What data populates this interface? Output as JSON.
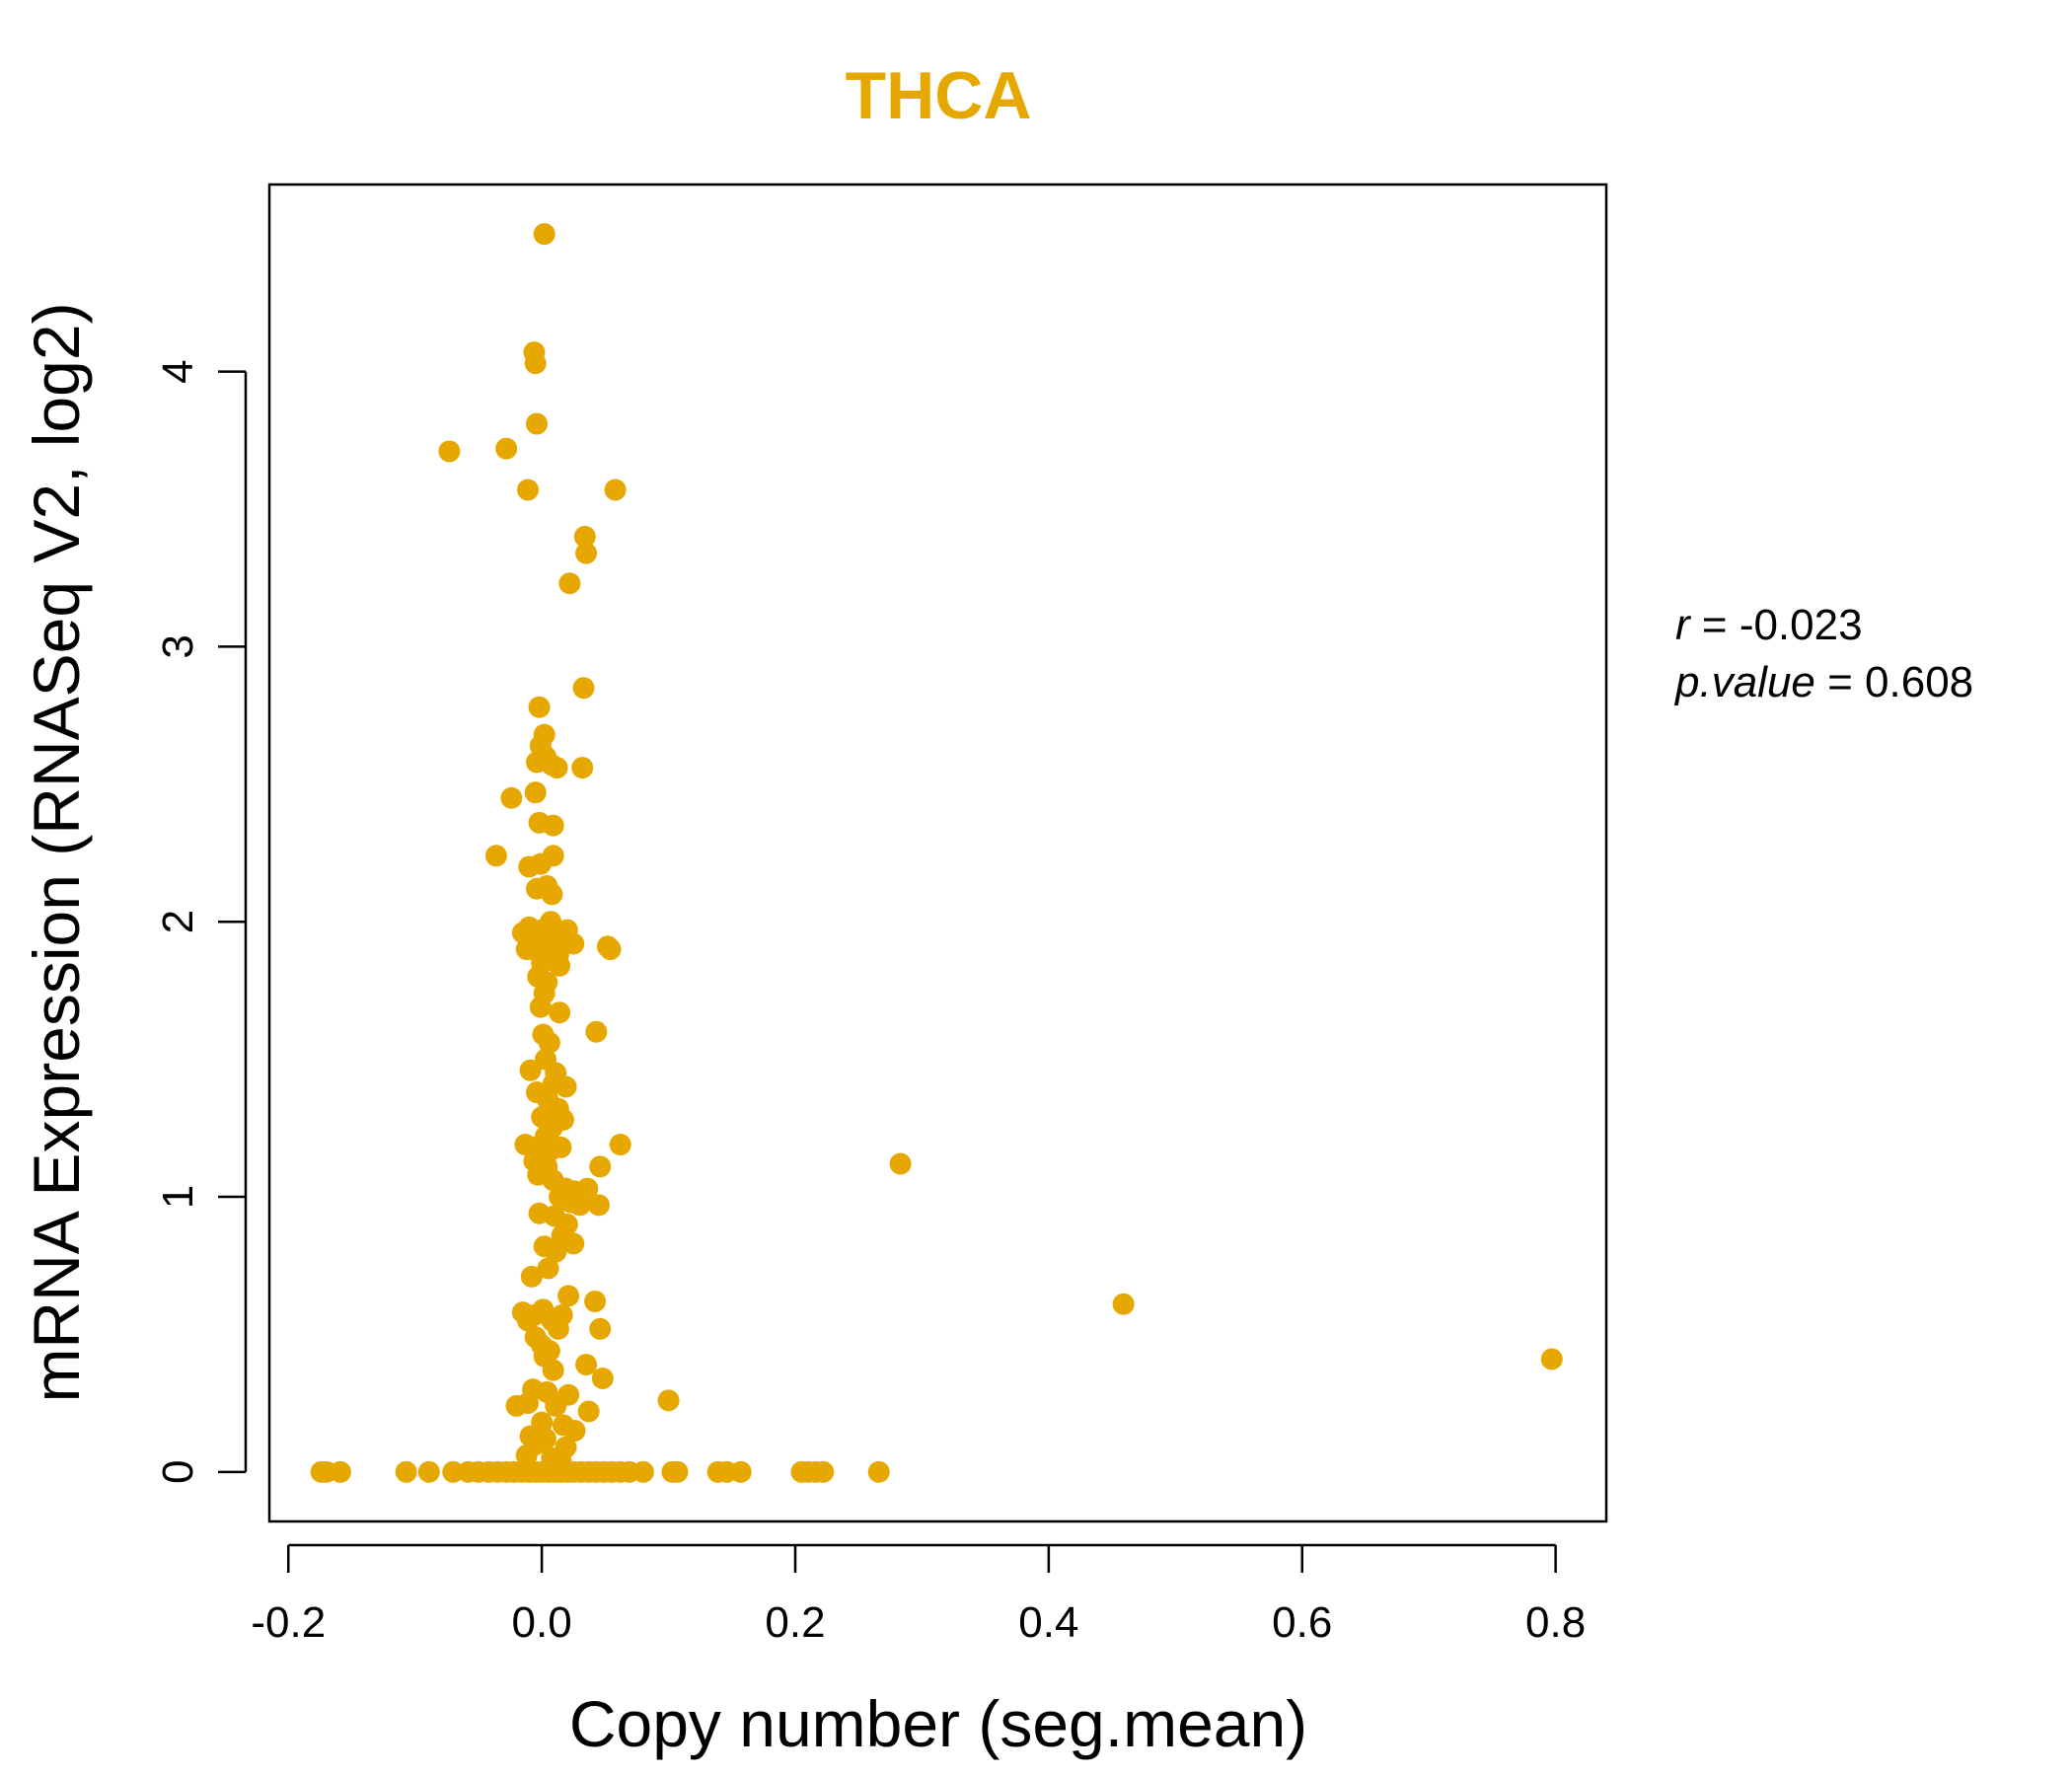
{
  "chart_data": {
    "type": "scatter",
    "title": "THCA",
    "xlabel": "Copy number (seg.mean)",
    "ylabel": "mRNA Expression (RNASeq V2, log2)",
    "xlim": [
      -0.215,
      0.84
    ],
    "ylim": [
      -0.18,
      4.68
    ],
    "xticks": [
      -0.2,
      0.0,
      0.2,
      0.4,
      0.6,
      0.8
    ],
    "xtick_labels": [
      "-0.2",
      "0.0",
      "0.2",
      "0.4",
      "0.6",
      "0.8"
    ],
    "yticks": [
      0,
      1,
      2,
      3,
      4
    ],
    "ytick_labels": [
      "0",
      "1",
      "2",
      "3",
      "4"
    ],
    "grid": false,
    "legend": "none",
    "colors": {
      "points": "#E6A800",
      "title": "#E6A800",
      "axes": "#000000"
    },
    "stats": {
      "r_label": "r",
      "r_value": "-0.023",
      "p_label": "p.value",
      "p_value": "0.608"
    },
    "points": [
      {
        "x": 0.002,
        "y": 4.5
      },
      {
        "x": -0.006,
        "y": 4.07
      },
      {
        "x": -0.005,
        "y": 4.03
      },
      {
        "x": -0.004,
        "y": 3.81
      },
      {
        "x": -0.073,
        "y": 3.71
      },
      {
        "x": -0.028,
        "y": 3.72
      },
      {
        "x": -0.011,
        "y": 3.57
      },
      {
        "x": 0.058,
        "y": 3.57
      },
      {
        "x": 0.034,
        "y": 3.4
      },
      {
        "x": 0.035,
        "y": 3.34
      },
      {
        "x": 0.022,
        "y": 3.23
      },
      {
        "x": 0.033,
        "y": 2.85
      },
      {
        "x": -0.002,
        "y": 2.78
      },
      {
        "x": 0.002,
        "y": 2.68
      },
      {
        "x": -0.001,
        "y": 2.64
      },
      {
        "x": 0.003,
        "y": 2.6
      },
      {
        "x": -0.004,
        "y": 2.58
      },
      {
        "x": 0.008,
        "y": 2.57
      },
      {
        "x": 0.012,
        "y": 2.56
      },
      {
        "x": 0.032,
        "y": 2.56
      },
      {
        "x": -0.024,
        "y": 2.45
      },
      {
        "x": -0.005,
        "y": 2.47
      },
      {
        "x": -0.002,
        "y": 2.36
      },
      {
        "x": 0.009,
        "y": 2.35
      },
      {
        "x": -0.036,
        "y": 2.24
      },
      {
        "x": 0.009,
        "y": 2.24
      },
      {
        "x": -0.01,
        "y": 2.2
      },
      {
        "x": -0.001,
        "y": 2.21
      },
      {
        "x": -0.004,
        "y": 2.12
      },
      {
        "x": 0.004,
        "y": 2.13
      },
      {
        "x": 0.008,
        "y": 2.1
      },
      {
        "x": 0.007,
        "y": 2.0
      },
      {
        "x": -0.015,
        "y": 1.96
      },
      {
        "x": -0.01,
        "y": 1.98
      },
      {
        "x": -0.005,
        "y": 1.95
      },
      {
        "x": 0.0,
        "y": 1.97
      },
      {
        "x": 0.004,
        "y": 1.94
      },
      {
        "x": 0.01,
        "y": 1.96
      },
      {
        "x": 0.015,
        "y": 1.95
      },
      {
        "x": 0.02,
        "y": 1.97
      },
      {
        "x": 0.025,
        "y": 1.92
      },
      {
        "x": -0.012,
        "y": 1.9
      },
      {
        "x": -0.003,
        "y": 1.89
      },
      {
        "x": 0.006,
        "y": 1.9
      },
      {
        "x": 0.013,
        "y": 1.88
      },
      {
        "x": 0.052,
        "y": 1.91
      },
      {
        "x": 0.054,
        "y": 1.9
      },
      {
        "x": 0.0,
        "y": 1.85
      },
      {
        "x": 0.014,
        "y": 1.84
      },
      {
        "x": -0.003,
        "y": 1.8
      },
      {
        "x": 0.004,
        "y": 1.78
      },
      {
        "x": 0.002,
        "y": 1.74
      },
      {
        "x": -0.001,
        "y": 1.69
      },
      {
        "x": 0.014,
        "y": 1.67
      },
      {
        "x": 0.043,
        "y": 1.6
      },
      {
        "x": 0.001,
        "y": 1.59
      },
      {
        "x": 0.006,
        "y": 1.56
      },
      {
        "x": 0.003,
        "y": 1.5
      },
      {
        "x": -0.009,
        "y": 1.46
      },
      {
        "x": 0.011,
        "y": 1.45
      },
      {
        "x": 0.009,
        "y": 1.41
      },
      {
        "x": 0.019,
        "y": 1.4
      },
      {
        "x": -0.004,
        "y": 1.38
      },
      {
        "x": 0.005,
        "y": 1.35
      },
      {
        "x": 0.013,
        "y": 1.32
      },
      {
        "x": 0.0,
        "y": 1.29
      },
      {
        "x": 0.017,
        "y": 1.28
      },
      {
        "x": 0.008,
        "y": 1.25
      },
      {
        "x": 0.003,
        "y": 1.22
      },
      {
        "x": -0.013,
        "y": 1.19
      },
      {
        "x": -0.005,
        "y": 1.18
      },
      {
        "x": 0.007,
        "y": 1.17
      },
      {
        "x": 0.015,
        "y": 1.18
      },
      {
        "x": 0.062,
        "y": 1.19
      },
      {
        "x": -0.006,
        "y": 1.13
      },
      {
        "x": 0.004,
        "y": 1.11
      },
      {
        "x": 0.046,
        "y": 1.11
      },
      {
        "x": 0.283,
        "y": 1.12
      },
      {
        "x": -0.003,
        "y": 1.08
      },
      {
        "x": 0.009,
        "y": 1.06
      },
      {
        "x": 0.019,
        "y": 1.03
      },
      {
        "x": 0.026,
        "y": 1.02
      },
      {
        "x": 0.036,
        "y": 1.03
      },
      {
        "x": 0.014,
        "y": 1.0
      },
      {
        "x": 0.023,
        "y": 0.98
      },
      {
        "x": 0.03,
        "y": 0.97
      },
      {
        "x": 0.045,
        "y": 0.97
      },
      {
        "x": -0.002,
        "y": 0.94
      },
      {
        "x": 0.01,
        "y": 0.93
      },
      {
        "x": 0.02,
        "y": 0.9
      },
      {
        "x": 0.016,
        "y": 0.86
      },
      {
        "x": 0.025,
        "y": 0.83
      },
      {
        "x": 0.002,
        "y": 0.82
      },
      {
        "x": 0.011,
        "y": 0.8
      },
      {
        "x": 0.005,
        "y": 0.74
      },
      {
        "x": -0.008,
        "y": 0.71
      },
      {
        "x": 0.021,
        "y": 0.64
      },
      {
        "x": 0.042,
        "y": 0.62
      },
      {
        "x": 0.459,
        "y": 0.61
      },
      {
        "x": -0.015,
        "y": 0.58
      },
      {
        "x": -0.006,
        "y": 0.57
      },
      {
        "x": 0.001,
        "y": 0.59
      },
      {
        "x": 0.016,
        "y": 0.57
      },
      {
        "x": -0.011,
        "y": 0.55
      },
      {
        "x": 0.008,
        "y": 0.55
      },
      {
        "x": 0.013,
        "y": 0.52
      },
      {
        "x": 0.046,
        "y": 0.52
      },
      {
        "x": -0.005,
        "y": 0.49
      },
      {
        "x": 0.0,
        "y": 0.46
      },
      {
        "x": 0.006,
        "y": 0.44
      },
      {
        "x": 0.002,
        "y": 0.42
      },
      {
        "x": 0.797,
        "y": 0.41
      },
      {
        "x": 0.035,
        "y": 0.39
      },
      {
        "x": 0.009,
        "y": 0.37
      },
      {
        "x": 0.048,
        "y": 0.34
      },
      {
        "x": -0.007,
        "y": 0.3
      },
      {
        "x": 0.004,
        "y": 0.29
      },
      {
        "x": 0.021,
        "y": 0.28
      },
      {
        "x": 0.1,
        "y": 0.26
      },
      {
        "x": -0.02,
        "y": 0.24
      },
      {
        "x": -0.011,
        "y": 0.25
      },
      {
        "x": 0.011,
        "y": 0.24
      },
      {
        "x": 0.037,
        "y": 0.22
      },
      {
        "x": 0.0,
        "y": 0.18
      },
      {
        "x": 0.017,
        "y": 0.17
      },
      {
        "x": 0.026,
        "y": 0.15
      },
      {
        "x": -0.009,
        "y": 0.13
      },
      {
        "x": 0.003,
        "y": 0.12
      },
      {
        "x": -0.005,
        "y": 0.1
      },
      {
        "x": 0.019,
        "y": 0.09
      },
      {
        "x": -0.012,
        "y": 0.06
      },
      {
        "x": 0.008,
        "y": 0.05
      },
      {
        "x": 0.015,
        "y": 0.04
      },
      {
        "x": -0.174,
        "y": 0.0
      },
      {
        "x": -0.17,
        "y": 0.0
      },
      {
        "x": -0.159,
        "y": 0.0
      },
      {
        "x": -0.107,
        "y": 0.0
      },
      {
        "x": -0.089,
        "y": 0.0
      },
      {
        "x": -0.07,
        "y": 0.0
      },
      {
        "x": -0.058,
        "y": 0.0
      },
      {
        "x": -0.05,
        "y": 0.0
      },
      {
        "x": -0.042,
        "y": 0.0
      },
      {
        "x": -0.035,
        "y": 0.0
      },
      {
        "x": -0.028,
        "y": 0.0
      },
      {
        "x": -0.022,
        "y": 0.0
      },
      {
        "x": -0.016,
        "y": 0.0
      },
      {
        "x": -0.01,
        "y": 0.0
      },
      {
        "x": -0.005,
        "y": 0.0
      },
      {
        "x": 0.0,
        "y": 0.0
      },
      {
        "x": 0.005,
        "y": 0.0
      },
      {
        "x": 0.01,
        "y": 0.0
      },
      {
        "x": 0.015,
        "y": 0.0
      },
      {
        "x": 0.02,
        "y": 0.0
      },
      {
        "x": 0.025,
        "y": 0.0
      },
      {
        "x": 0.031,
        "y": 0.0
      },
      {
        "x": 0.037,
        "y": 0.0
      },
      {
        "x": 0.043,
        "y": 0.0
      },
      {
        "x": 0.049,
        "y": 0.0
      },
      {
        "x": 0.055,
        "y": 0.0
      },
      {
        "x": 0.062,
        "y": 0.0
      },
      {
        "x": 0.069,
        "y": 0.0
      },
      {
        "x": 0.08,
        "y": 0.0
      },
      {
        "x": 0.103,
        "y": 0.0
      },
      {
        "x": 0.107,
        "y": 0.0
      },
      {
        "x": 0.139,
        "y": 0.0
      },
      {
        "x": 0.146,
        "y": 0.0
      },
      {
        "x": 0.157,
        "y": 0.0
      },
      {
        "x": 0.205,
        "y": 0.0
      },
      {
        "x": 0.21,
        "y": 0.0
      },
      {
        "x": 0.216,
        "y": 0.0
      },
      {
        "x": 0.222,
        "y": 0.0
      },
      {
        "x": 0.266,
        "y": 0.0
      }
    ]
  }
}
